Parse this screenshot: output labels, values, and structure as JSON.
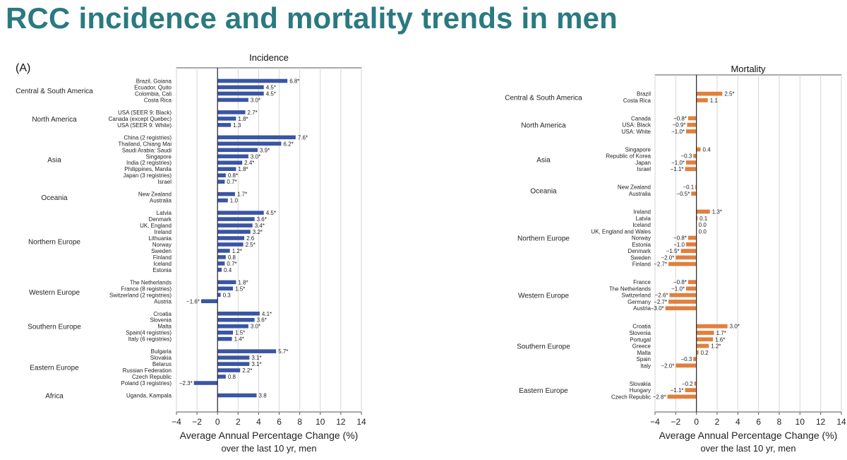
{
  "title": "RCC incidence and mortality trends in men",
  "panel_tag": "(A)",
  "colors": {
    "title": "#2a7a80",
    "incidence": "#3a55a4",
    "mortality": "#e0803e",
    "grid": "#d6d6d6"
  },
  "chart_data": [
    {
      "type": "bar",
      "orientation": "horizontal",
      "title": "Incidence",
      "xlabel": "Average Annual Percentage Change (%)",
      "xlabel2": "over the last 10 yr, men",
      "xlim": [
        -4,
        14
      ],
      "xticks": [
        -4,
        -2,
        0,
        2,
        4,
        6,
        8,
        10,
        12,
        14
      ],
      "grid": true,
      "groups": [
        {
          "name": "Central & South America",
          "items": [
            {
              "label": "Brazil, Goiana",
              "value": 6.8,
              "display": "6.8*"
            },
            {
              "label": "Ecuador, Quito",
              "value": 4.5,
              "display": "4.5*"
            },
            {
              "label": "Colombia, Cali",
              "value": 4.5,
              "display": "4.5*"
            },
            {
              "label": "Costa Rica",
              "value": 3.0,
              "display": "3.0*"
            }
          ]
        },
        {
          "name": "North America",
          "items": [
            {
              "label": "USA (SEER 9: Black)",
              "value": 2.7,
              "display": "2.7*"
            },
            {
              "label": "Canada (except Quebec)",
              "value": 1.8,
              "display": "1.8*"
            },
            {
              "label": "USA (SEER 9: White)",
              "value": 1.3,
              "display": "1.3"
            }
          ]
        },
        {
          "name": "Asia",
          "items": [
            {
              "label": "China (2 registries)",
              "value": 7.6,
              "display": "7.6*"
            },
            {
              "label": "Thailand, Chiang Mai",
              "value": 6.2,
              "display": "6.2*"
            },
            {
              "label": "Saudi Arabia: Saudi",
              "value": 3.9,
              "display": "3.9*"
            },
            {
              "label": "Singapore",
              "value": 3.0,
              "display": "3.0*"
            },
            {
              "label": "India  (2 registries)",
              "value": 2.4,
              "display": "2.4*"
            },
            {
              "label": "Philippines, Manila",
              "value": 1.8,
              "display": "1.8*"
            },
            {
              "label": "Japan (3 registries)",
              "value": 0.8,
              "display": "0.8*"
            },
            {
              "label": "Israel",
              "value": 0.7,
              "display": "0.7*"
            }
          ]
        },
        {
          "name": "Oceania",
          "items": [
            {
              "label": "New Zealand",
              "value": 1.7,
              "display": "1.7*"
            },
            {
              "label": "Australia",
              "value": 1.0,
              "display": "1.0"
            }
          ]
        },
        {
          "name": "Northern Europe",
          "items": [
            {
              "label": "Latvia",
              "value": 4.5,
              "display": "4.5*"
            },
            {
              "label": "Denmark",
              "value": 3.6,
              "display": "3.6*"
            },
            {
              "label": "UK, England",
              "value": 3.4,
              "display": "3.4*"
            },
            {
              "label": "Ireland",
              "value": 3.2,
              "display": "3.2*"
            },
            {
              "label": "Lithuania",
              "value": 2.6,
              "display": "2.6"
            },
            {
              "label": "Norway",
              "value": 2.5,
              "display": "2.5*"
            },
            {
              "label": "Sweden",
              "value": 1.2,
              "display": "1.2*"
            },
            {
              "label": "Finland",
              "value": 0.8,
              "display": "0.8"
            },
            {
              "label": "Iceland",
              "value": 0.7,
              "display": "0.7*"
            },
            {
              "label": "Estonia",
              "value": 0.4,
              "display": "0.4"
            }
          ]
        },
        {
          "name": "Western Europe",
          "items": [
            {
              "label": "The Netherlands",
              "value": 1.8,
              "display": "1.8*"
            },
            {
              "label": "France (8 registries)",
              "value": 1.5,
              "display": "1.5*"
            },
            {
              "label": "Switzerland (2 registries)",
              "value": 0.3,
              "display": "0.3"
            },
            {
              "label": "Austria",
              "value": -1.6,
              "display": "−1.6*"
            }
          ]
        },
        {
          "name": "Southern Europe",
          "items": [
            {
              "label": "Croatia",
              "value": 4.1,
              "display": "4.1*"
            },
            {
              "label": "Slovenia",
              "value": 3.6,
              "display": "3.6*"
            },
            {
              "label": "Malta",
              "value": 3.0,
              "display": "3.0*"
            },
            {
              "label": "Spain(4 registries)",
              "value": 1.5,
              "display": "1.5*"
            },
            {
              "label": "Italy  (6 registries)",
              "value": 1.4,
              "display": "1.4*"
            }
          ]
        },
        {
          "name": "Eastern Europe",
          "items": [
            {
              "label": "Bulgaria",
              "value": 5.7,
              "display": "5.7*"
            },
            {
              "label": "Slovakia",
              "value": 3.1,
              "display": "3.1*"
            },
            {
              "label": "Belarus",
              "value": 3.1,
              "display": "3.1*"
            },
            {
              "label": "Russian Federation",
              "value": 2.2,
              "display": "2.2*"
            },
            {
              "label": "Czech Republic",
              "value": 0.8,
              "display": "0.8"
            },
            {
              "label": "Poland (3 registries)",
              "value": -2.3,
              "display": "−2.3*"
            }
          ]
        },
        {
          "name": "Africa",
          "items": [
            {
              "label": "Uganda, Kampala",
              "value": 3.8,
              "display": "3.8"
            }
          ]
        }
      ]
    },
    {
      "type": "bar",
      "orientation": "horizontal",
      "title": "Mortality",
      "xlabel": "Average Annual Percentage Change (%)",
      "xlabel2": "over the last 10 yr, men",
      "xlim": [
        -4,
        14
      ],
      "xticks": [
        -4,
        -2,
        0,
        2,
        4,
        6,
        8,
        10,
        12,
        14
      ],
      "grid": true,
      "groups": [
        {
          "name": "Central & South America",
          "items": [
            {
              "label": "Brazil",
              "value": 2.5,
              "display": "2.5*"
            },
            {
              "label": "Costa Rica",
              "value": 1.1,
              "display": "1.1"
            }
          ]
        },
        {
          "name": "North America",
          "items": [
            {
              "label": "Canada",
              "value": -0.8,
              "display": "−0.8*"
            },
            {
              "label": "USA: Black",
              "value": -0.9,
              "display": "−0.9*"
            },
            {
              "label": "USA: White",
              "value": -1.0,
              "display": "−1.0*"
            }
          ]
        },
        {
          "name": "Asia",
          "items": [
            {
              "label": "Singapore",
              "value": 0.4,
              "display": "0.4"
            },
            {
              "label": "Republic of Korea",
              "value": -0.3,
              "display": "−0.3"
            },
            {
              "label": "Japan",
              "value": -1.0,
              "display": "−1.0*"
            },
            {
              "label": "Israel",
              "value": -1.1,
              "display": "−1.1*"
            }
          ]
        },
        {
          "name": "Oceania",
          "items": [
            {
              "label": "New Zealand",
              "value": -0.1,
              "display": "−0.1"
            },
            {
              "label": "Australia",
              "value": -0.5,
              "display": "−0.5*"
            }
          ]
        },
        {
          "name": "Northern Europe",
          "items": [
            {
              "label": "Ireland",
              "value": 1.3,
              "display": "1.3*"
            },
            {
              "label": "Latvia",
              "value": 0.1,
              "display": "0.1"
            },
            {
              "label": "Iceland",
              "value": 0.0,
              "display": "0.0"
            },
            {
              "label": "UK, England and Wales",
              "value": 0.0,
              "display": "0.0"
            },
            {
              "label": "Norway",
              "value": -0.8,
              "display": "−0.8*"
            },
            {
              "label": "Estonia",
              "value": -1.0,
              "display": "−1.0"
            },
            {
              "label": "Denmark",
              "value": -1.5,
              "display": "−1.5*"
            },
            {
              "label": "Sweden",
              "value": -2.0,
              "display": "−2.0*"
            },
            {
              "label": "Finland",
              "value": -2.7,
              "display": "−2.7*"
            }
          ]
        },
        {
          "name": "Western Europe",
          "items": [
            {
              "label": "France",
              "value": -0.8,
              "display": "−0.8*"
            },
            {
              "label": "The Netherlands",
              "value": -1.0,
              "display": "−1.0*"
            },
            {
              "label": "Switzerland",
              "value": -2.6,
              "display": "−2.6*"
            },
            {
              "label": "Germany",
              "value": -2.7,
              "display": "−2.7*"
            },
            {
              "label": "Austria",
              "value": -3.0,
              "display": "−3.0*"
            }
          ]
        },
        {
          "name": "Southern Europe",
          "items": [
            {
              "label": "Croatia",
              "value": 3.0,
              "display": "3.0*"
            },
            {
              "label": "Slovenia",
              "value": 1.7,
              "display": "1.7*"
            },
            {
              "label": "Portugal",
              "value": 1.6,
              "display": "1.6*"
            },
            {
              "label": "Greece",
              "value": 1.2,
              "display": "1.2*"
            },
            {
              "label": "Malta",
              "value": 0.2,
              "display": "0.2"
            },
            {
              "label": "Spain",
              "value": -0.3,
              "display": "−0.3"
            },
            {
              "label": "Italy",
              "value": -2.0,
              "display": "−2.0*"
            }
          ]
        },
        {
          "name": "Eastern Europe",
          "items": [
            {
              "label": "Slovakia",
              "value": -0.2,
              "display": "−0.2"
            },
            {
              "label": "Hungary",
              "value": -1.1,
              "display": "−1.1*"
            },
            {
              "label": "Czech Republic",
              "value": -2.8,
              "display": "−2.8*"
            }
          ]
        }
      ]
    }
  ]
}
